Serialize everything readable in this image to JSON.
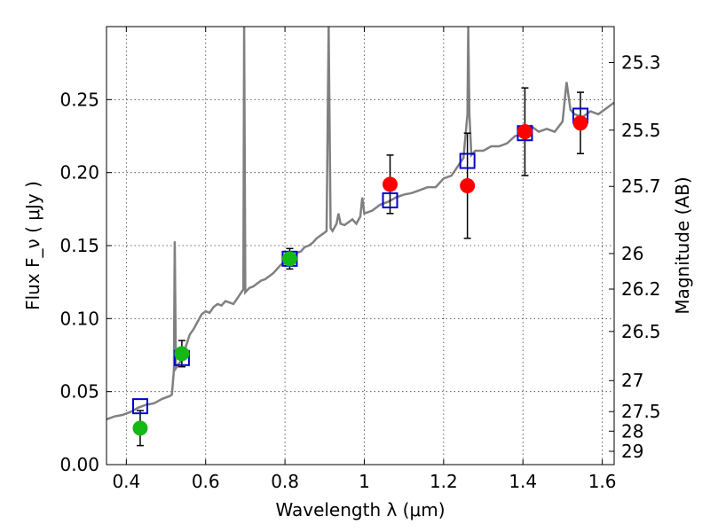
{
  "chart_data": {
    "type": "scatter",
    "title": "",
    "xlabel": "Wavelength  λ (μm)",
    "ylabel": "Flux  F_ν  ( μJy )",
    "y2label": "Magnitude (AB)",
    "xlim": [
      0.35,
      1.63
    ],
    "ylim": [
      0.0,
      0.3
    ],
    "grid": true,
    "x_ticks": [
      {
        "value": 0.4,
        "label": "0.4"
      },
      {
        "value": 0.6,
        "label": "0.6"
      },
      {
        "value": 0.8,
        "label": "0.8"
      },
      {
        "value": 1.0,
        "label": "1"
      },
      {
        "value": 1.2,
        "label": "1.2"
      },
      {
        "value": 1.4,
        "label": "1.4"
      },
      {
        "value": 1.6,
        "label": "1.6"
      }
    ],
    "y_ticks": [
      {
        "value": 0.0,
        "label": "0.00"
      },
      {
        "value": 0.05,
        "label": "0.05"
      },
      {
        "value": 0.1,
        "label": "0.10"
      },
      {
        "value": 0.15,
        "label": "0.15"
      },
      {
        "value": 0.2,
        "label": "0.20"
      },
      {
        "value": 0.25,
        "label": "0.25"
      }
    ],
    "y2_ticks": [
      {
        "mag": 25.3,
        "label": "25.3"
      },
      {
        "mag": 25.5,
        "label": "25.5"
      },
      {
        "mag": 25.7,
        "label": "25.7"
      },
      {
        "mag": 26.0,
        "label": "26"
      },
      {
        "mag": 26.2,
        "label": "26.2"
      },
      {
        "mag": 26.5,
        "label": "26.5"
      },
      {
        "mag": 27.0,
        "label": "27"
      },
      {
        "mag": 27.5,
        "label": "27.5"
      },
      {
        "mag": 28.0,
        "label": "28"
      },
      {
        "mag": 29.0,
        "label": "29"
      }
    ],
    "series": [
      {
        "kind": "spectrum",
        "color": "#808080",
        "points": [
          [
            0.35,
            0.031
          ],
          [
            0.37,
            0.033
          ],
          [
            0.39,
            0.034
          ],
          [
            0.41,
            0.036
          ],
          [
            0.43,
            0.039
          ],
          [
            0.45,
            0.041
          ],
          [
            0.47,
            0.042
          ],
          [
            0.49,
            0.045
          ],
          [
            0.51,
            0.047
          ],
          [
            0.515,
            0.048
          ],
          [
            0.52,
            0.065
          ],
          [
            0.522,
            0.153
          ],
          [
            0.525,
            0.066
          ],
          [
            0.54,
            0.072
          ],
          [
            0.555,
            0.085
          ],
          [
            0.56,
            0.089
          ],
          [
            0.57,
            0.093
          ],
          [
            0.58,
            0.098
          ],
          [
            0.59,
            0.103
          ],
          [
            0.6,
            0.105
          ],
          [
            0.61,
            0.104
          ],
          [
            0.62,
            0.108
          ],
          [
            0.63,
            0.11
          ],
          [
            0.64,
            0.109
          ],
          [
            0.65,
            0.112
          ],
          [
            0.66,
            0.111
          ],
          [
            0.67,
            0.11
          ],
          [
            0.68,
            0.114
          ],
          [
            0.69,
            0.118
          ],
          [
            0.695,
            0.12
          ],
          [
            0.697,
            0.3
          ],
          [
            0.7,
            0.118
          ],
          [
            0.71,
            0.121
          ],
          [
            0.72,
            0.122
          ],
          [
            0.73,
            0.124
          ],
          [
            0.74,
            0.126
          ],
          [
            0.75,
            0.127
          ],
          [
            0.76,
            0.129
          ],
          [
            0.77,
            0.131
          ],
          [
            0.78,
            0.134
          ],
          [
            0.79,
            0.137
          ],
          [
            0.8,
            0.138
          ],
          [
            0.81,
            0.14
          ],
          [
            0.82,
            0.142
          ],
          [
            0.83,
            0.145
          ],
          [
            0.84,
            0.146
          ],
          [
            0.85,
            0.149
          ],
          [
            0.86,
            0.15
          ],
          [
            0.87,
            0.152
          ],
          [
            0.88,
            0.155
          ],
          [
            0.89,
            0.157
          ],
          [
            0.9,
            0.159
          ],
          [
            0.905,
            0.16
          ],
          [
            0.91,
            0.3
          ],
          [
            0.915,
            0.162
          ],
          [
            0.92,
            0.16
          ],
          [
            0.93,
            0.165
          ],
          [
            0.935,
            0.172
          ],
          [
            0.94,
            0.165
          ],
          [
            0.95,
            0.164
          ],
          [
            0.96,
            0.166
          ],
          [
            0.97,
            0.168
          ],
          [
            0.98,
            0.165
          ],
          [
            0.99,
            0.17
          ],
          [
            0.995,
            0.183
          ],
          [
            1.0,
            0.172
          ],
          [
            1.02,
            0.174
          ],
          [
            1.04,
            0.178
          ],
          [
            1.06,
            0.18
          ],
          [
            1.08,
            0.183
          ],
          [
            1.1,
            0.185
          ],
          [
            1.12,
            0.186
          ],
          [
            1.14,
            0.188
          ],
          [
            1.16,
            0.19
          ],
          [
            1.18,
            0.19
          ],
          [
            1.2,
            0.196
          ],
          [
            1.22,
            0.198
          ],
          [
            1.24,
            0.206
          ],
          [
            1.25,
            0.21
          ],
          [
            1.26,
            0.24
          ],
          [
            1.262,
            0.3
          ],
          [
            1.265,
            0.24
          ],
          [
            1.27,
            0.212
          ],
          [
            1.28,
            0.215
          ],
          [
            1.3,
            0.215
          ],
          [
            1.32,
            0.218
          ],
          [
            1.34,
            0.218
          ],
          [
            1.36,
            0.22
          ],
          [
            1.38,
            0.225
          ],
          [
            1.4,
            0.226
          ],
          [
            1.42,
            0.232
          ],
          [
            1.44,
            0.228
          ],
          [
            1.46,
            0.23
          ],
          [
            1.48,
            0.228
          ],
          [
            1.5,
            0.235
          ],
          [
            1.51,
            0.262
          ],
          [
            1.52,
            0.243
          ],
          [
            1.53,
            0.24
          ],
          [
            1.55,
            0.238
          ],
          [
            1.57,
            0.242
          ],
          [
            1.59,
            0.24
          ],
          [
            1.61,
            0.244
          ],
          [
            1.63,
            0.248
          ]
        ]
      },
      {
        "kind": "model_bands",
        "marker": "open-square",
        "color": "#0000cc",
        "points": [
          [
            0.435,
            0.04
          ],
          [
            0.54,
            0.073
          ],
          [
            0.812,
            0.141
          ],
          [
            1.065,
            0.181
          ],
          [
            1.26,
            0.208
          ],
          [
            1.405,
            0.227
          ],
          [
            1.545,
            0.239
          ]
        ]
      },
      {
        "kind": "photometry_optical",
        "marker": "filled-circle",
        "color": "#16b816",
        "points": [
          {
            "x": 0.435,
            "y": 0.025,
            "err": 0.012
          },
          {
            "x": 0.54,
            "y": 0.076,
            "err": 0.009
          },
          {
            "x": 0.812,
            "y": 0.141,
            "err": 0.007
          }
        ]
      },
      {
        "kind": "photometry_nir",
        "marker": "filled-circle",
        "color": "#ff0000",
        "points": [
          {
            "x": 1.065,
            "y": 0.192,
            "err": 0.02
          },
          {
            "x": 1.26,
            "y": 0.191,
            "err": 0.036
          },
          {
            "x": 1.405,
            "y": 0.228,
            "err": 0.03
          },
          {
            "x": 1.545,
            "y": 0.234,
            "err": 0.021
          }
        ]
      }
    ]
  }
}
